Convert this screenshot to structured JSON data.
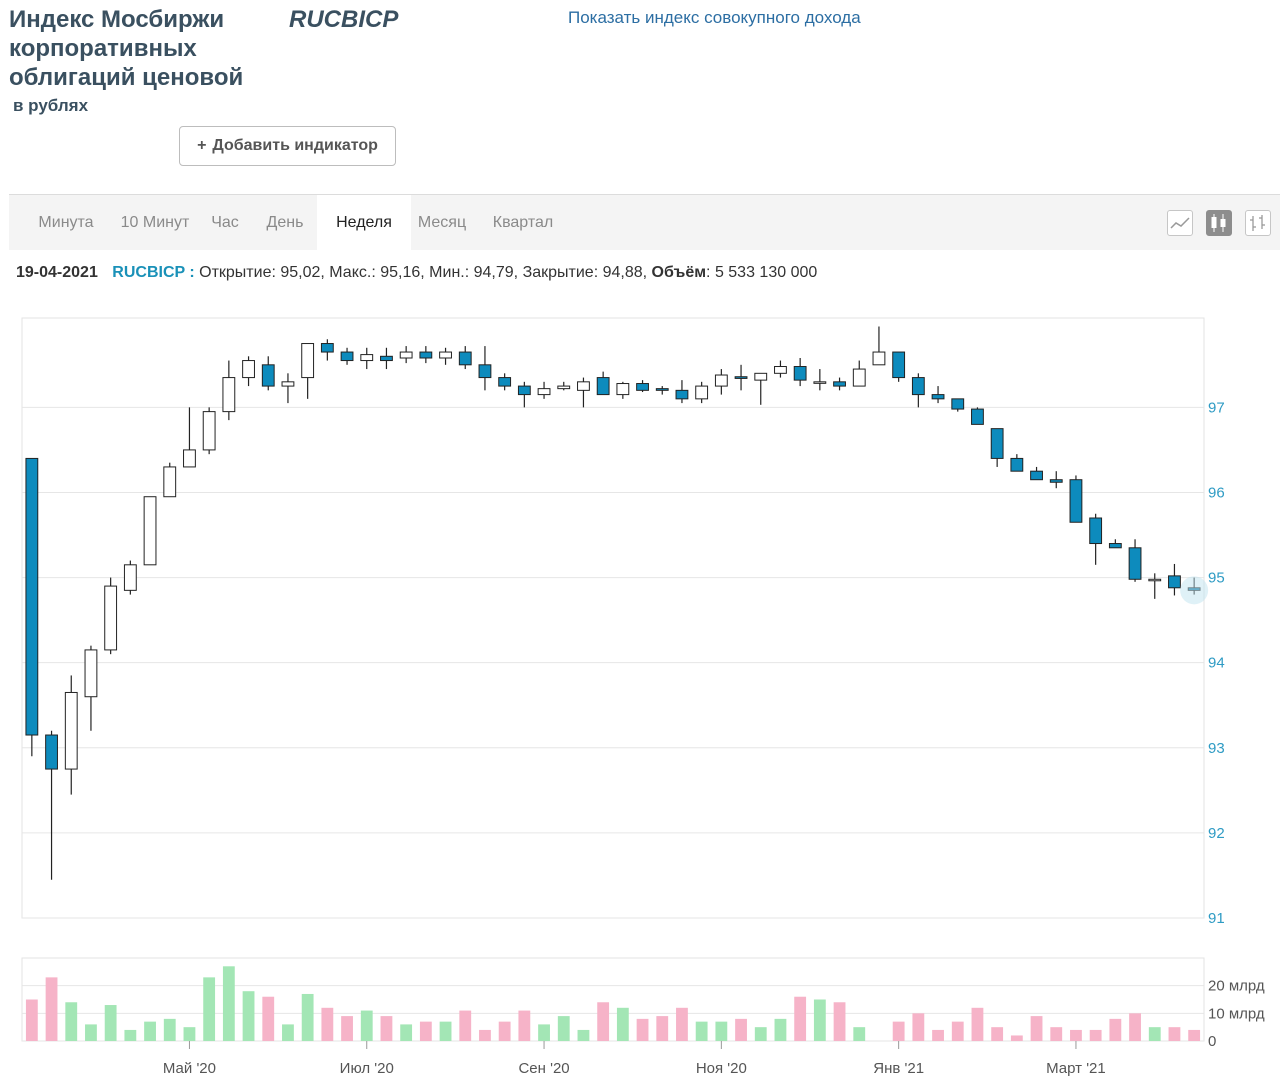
{
  "header": {
    "title": "Индекс Мосбиржи корпоративных облигаций ценовой",
    "currency_note": "в рублях",
    "ticker": "RUCBICP",
    "total_return_link": "Показать индекс совокупного дохода",
    "add_indicator_label": "Добавить индикатор",
    "add_indicator_icon": "+"
  },
  "tabs": {
    "items": [
      "Минута",
      "10 Минут",
      "Час",
      "День",
      "Неделя",
      "Месяц",
      "Квартал"
    ],
    "active": "Неделя"
  },
  "chart_types": {
    "items": [
      "line-chart-icon",
      "candlestick-chart-icon",
      "ohlc-bar-chart-icon"
    ],
    "active": "candlestick-chart-icon"
  },
  "info": {
    "date": "19-04-2021",
    "ticker": "RUCBICP :",
    "open_label": "Открытие:",
    "open": "95,02",
    "high_label": "Макс.:",
    "high": "95,16",
    "low_label": "Мин.:",
    "low": "94,79",
    "close_label": "Закрытие:",
    "close": "94,88",
    "volume_label": "Объём",
    "volume": "5 533 130 000"
  },
  "colors": {
    "up_candle_fill": "#ffffff",
    "down_candle_fill": "#0d8bbd",
    "candle_outline": "#222222",
    "volume_up": "#a3e6b5",
    "volume_down": "#f6b3c8",
    "price_axis_text": "#2e9bc4",
    "grid": "#e6e6e6"
  },
  "chart_data": {
    "type": "candlestick",
    "interval": "week",
    "price_axis": {
      "ticks": [
        91,
        92,
        93,
        94,
        95,
        96,
        97
      ],
      "range": [
        91,
        98.05
      ]
    },
    "volume_axis": {
      "ticks": [
        "0",
        "10 млрд",
        "20 млрд"
      ],
      "range_bn": [
        0,
        30
      ]
    },
    "x_axis_labels": [
      "Май '20",
      "Июл '20",
      "Сен '20",
      "Ноя '20",
      "Янв '21",
      "Март '21"
    ],
    "x_axis_label_index": [
      8,
      17,
      26,
      35,
      44,
      53
    ],
    "candles": [
      {
        "o": 96.4,
        "h": 96.4,
        "l": 92.9,
        "c": 93.15,
        "v": 15
      },
      {
        "o": 93.15,
        "h": 93.2,
        "l": 91.45,
        "c": 92.75,
        "v": 23
      },
      {
        "o": 92.75,
        "h": 93.85,
        "l": 92.45,
        "c": 93.65,
        "v": 14
      },
      {
        "o": 93.6,
        "h": 94.2,
        "l": 93.2,
        "c": 94.15,
        "v": 6
      },
      {
        "o": 94.15,
        "h": 95.0,
        "l": 94.1,
        "c": 94.9,
        "v": 13
      },
      {
        "o": 94.85,
        "h": 95.2,
        "l": 94.8,
        "c": 95.15,
        "v": 4
      },
      {
        "o": 95.15,
        "h": 95.95,
        "l": 95.15,
        "c": 95.95,
        "v": 7
      },
      {
        "o": 95.95,
        "h": 96.35,
        "l": 95.95,
        "c": 96.3,
        "v": 8
      },
      {
        "o": 96.3,
        "h": 97.0,
        "l": 96.3,
        "c": 96.5,
        "v": 5
      },
      {
        "o": 96.5,
        "h": 97.0,
        "l": 96.45,
        "c": 96.95,
        "v": 23
      },
      {
        "o": 96.95,
        "h": 97.55,
        "l": 96.85,
        "c": 97.35,
        "v": 27
      },
      {
        "o": 97.35,
        "h": 97.6,
        "l": 97.25,
        "c": 97.55,
        "v": 18
      },
      {
        "o": 97.5,
        "h": 97.6,
        "l": 97.2,
        "c": 97.25,
        "v": 16
      },
      {
        "o": 97.25,
        "h": 97.4,
        "l": 97.05,
        "c": 97.3,
        "v": 6
      },
      {
        "o": 97.35,
        "h": 97.75,
        "l": 97.1,
        "c": 97.75,
        "v": 17
      },
      {
        "o": 97.75,
        "h": 97.8,
        "l": 97.55,
        "c": 97.65,
        "v": 12
      },
      {
        "o": 97.65,
        "h": 97.7,
        "l": 97.5,
        "c": 97.55,
        "v": 9
      },
      {
        "o": 97.55,
        "h": 97.7,
        "l": 97.45,
        "c": 97.62,
        "v": 11
      },
      {
        "o": 97.6,
        "h": 97.7,
        "l": 97.45,
        "c": 97.55,
        "v": 9
      },
      {
        "o": 97.58,
        "h": 97.72,
        "l": 97.52,
        "c": 97.65,
        "v": 6
      },
      {
        "o": 97.65,
        "h": 97.72,
        "l": 97.52,
        "c": 97.58,
        "v": 7
      },
      {
        "o": 97.58,
        "h": 97.7,
        "l": 97.5,
        "c": 97.65,
        "v": 7
      },
      {
        "o": 97.65,
        "h": 97.72,
        "l": 97.45,
        "c": 97.5,
        "v": 11
      },
      {
        "o": 97.5,
        "h": 97.72,
        "l": 97.2,
        "c": 97.35,
        "v": 4
      },
      {
        "o": 97.35,
        "h": 97.4,
        "l": 97.2,
        "c": 97.25,
        "v": 7
      },
      {
        "o": 97.25,
        "h": 97.3,
        "l": 97.0,
        "c": 97.15,
        "v": 11
      },
      {
        "o": 97.15,
        "h": 97.3,
        "l": 97.1,
        "c": 97.22,
        "v": 6
      },
      {
        "o": 97.22,
        "h": 97.3,
        "l": 97.2,
        "c": 97.25,
        "v": 9
      },
      {
        "o": 97.2,
        "h": 97.35,
        "l": 97.0,
        "c": 97.3,
        "v": 4
      },
      {
        "o": 97.35,
        "h": 97.42,
        "l": 97.15,
        "c": 97.15,
        "v": 14
      },
      {
        "o": 97.15,
        "h": 97.3,
        "l": 97.1,
        "c": 97.28,
        "v": 12
      },
      {
        "o": 97.28,
        "h": 97.32,
        "l": 97.18,
        "c": 97.2,
        "v": 8
      },
      {
        "o": 97.22,
        "h": 97.25,
        "l": 97.15,
        "c": 97.2,
        "v": 9
      },
      {
        "o": 97.2,
        "h": 97.32,
        "l": 97.05,
        "c": 97.1,
        "v": 12
      },
      {
        "o": 97.1,
        "h": 97.3,
        "l": 97.05,
        "c": 97.25,
        "v": 7
      },
      {
        "o": 97.25,
        "h": 97.45,
        "l": 97.15,
        "c": 97.38,
        "v": 7
      },
      {
        "o": 97.36,
        "h": 97.5,
        "l": 97.2,
        "c": 97.34,
        "v": 8
      },
      {
        "o": 97.32,
        "h": 97.4,
        "l": 97.03,
        "c": 97.4,
        "v": 5
      },
      {
        "o": 97.4,
        "h": 97.55,
        "l": 97.35,
        "c": 97.48,
        "v": 8
      },
      {
        "o": 97.48,
        "h": 97.58,
        "l": 97.25,
        "c": 97.32,
        "v": 16
      },
      {
        "o": 97.3,
        "h": 97.45,
        "l": 97.2,
        "c": 97.3,
        "v": 15
      },
      {
        "o": 97.3,
        "h": 97.35,
        "l": 97.2,
        "c": 97.25,
        "v": 14
      },
      {
        "o": 97.25,
        "h": 97.55,
        "l": 97.25,
        "c": 97.45,
        "v": 5
      },
      {
        "o": 97.5,
        "h": 97.95,
        "l": 97.5,
        "c": 97.65,
        "v": 0
      },
      {
        "o": 97.65,
        "h": 97.65,
        "l": 97.3,
        "c": 97.35,
        "v": 7
      },
      {
        "o": 97.35,
        "h": 97.4,
        "l": 97.0,
        "c": 97.15,
        "v": 10
      },
      {
        "o": 97.15,
        "h": 97.25,
        "l": 97.05,
        "c": 97.1,
        "v": 4
      },
      {
        "o": 97.1,
        "h": 97.1,
        "l": 96.95,
        "c": 96.98,
        "v": 7
      },
      {
        "o": 96.98,
        "h": 97.0,
        "l": 96.8,
        "c": 96.8,
        "v": 12
      },
      {
        "o": 96.75,
        "h": 96.75,
        "l": 96.3,
        "c": 96.4,
        "v": 5
      },
      {
        "o": 96.4,
        "h": 96.45,
        "l": 96.25,
        "c": 96.25,
        "v": 2
      },
      {
        "o": 96.25,
        "h": 96.3,
        "l": 96.15,
        "c": 96.15,
        "v": 9
      },
      {
        "o": 96.15,
        "h": 96.25,
        "l": 96.05,
        "c": 96.12,
        "v": 5
      },
      {
        "o": 96.15,
        "h": 96.2,
        "l": 95.65,
        "c": 95.65,
        "v": 4
      },
      {
        "o": 95.7,
        "h": 95.75,
        "l": 95.15,
        "c": 95.4,
        "v": 4
      },
      {
        "o": 95.4,
        "h": 95.45,
        "l": 95.35,
        "c": 95.35,
        "v": 8
      },
      {
        "o": 95.35,
        "h": 95.45,
        "l": 94.95,
        "c": 94.98,
        "v": 10
      },
      {
        "o": 94.98,
        "h": 95.05,
        "l": 94.75,
        "c": 94.98,
        "v": 5
      },
      {
        "o": 95.02,
        "h": 95.16,
        "l": 94.79,
        "c": 94.88,
        "v": 5
      },
      {
        "o": 94.88,
        "h": 95.0,
        "l": 94.8,
        "c": 94.85,
        "v": 4
      }
    ]
  }
}
